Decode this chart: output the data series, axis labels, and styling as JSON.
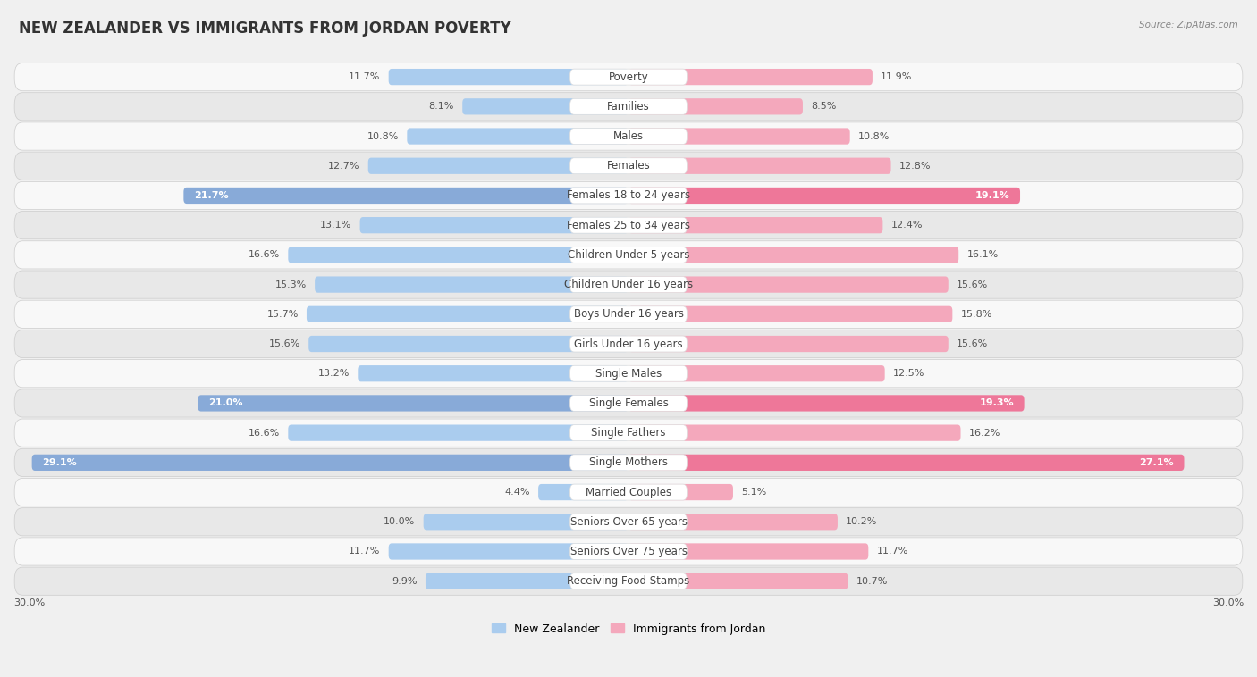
{
  "title": "NEW ZEALANDER VS IMMIGRANTS FROM JORDAN POVERTY",
  "source": "Source: ZipAtlas.com",
  "categories": [
    "Poverty",
    "Families",
    "Males",
    "Females",
    "Females 18 to 24 years",
    "Females 25 to 34 years",
    "Children Under 5 years",
    "Children Under 16 years",
    "Boys Under 16 years",
    "Girls Under 16 years",
    "Single Males",
    "Single Females",
    "Single Fathers",
    "Single Mothers",
    "Married Couples",
    "Seniors Over 65 years",
    "Seniors Over 75 years",
    "Receiving Food Stamps"
  ],
  "left_values": [
    11.7,
    8.1,
    10.8,
    12.7,
    21.7,
    13.1,
    16.6,
    15.3,
    15.7,
    15.6,
    13.2,
    21.0,
    16.6,
    29.1,
    4.4,
    10.0,
    11.7,
    9.9
  ],
  "right_values": [
    11.9,
    8.5,
    10.8,
    12.8,
    19.1,
    12.4,
    16.1,
    15.6,
    15.8,
    15.6,
    12.5,
    19.3,
    16.2,
    27.1,
    5.1,
    10.2,
    11.7,
    10.7
  ],
  "left_color": "#aaccee",
  "right_color": "#f4a8bc",
  "highlight_left_color": "#88aad8",
  "highlight_right_color": "#ee7799",
  "highlight_rows": [
    4,
    11,
    13
  ],
  "xlim": 30.0,
  "legend_left": "New Zealander",
  "legend_right": "Immigrants from Jordan",
  "background_color": "#f0f0f0",
  "title_fontsize": 12,
  "label_fontsize": 8.5,
  "value_fontsize": 8.0
}
